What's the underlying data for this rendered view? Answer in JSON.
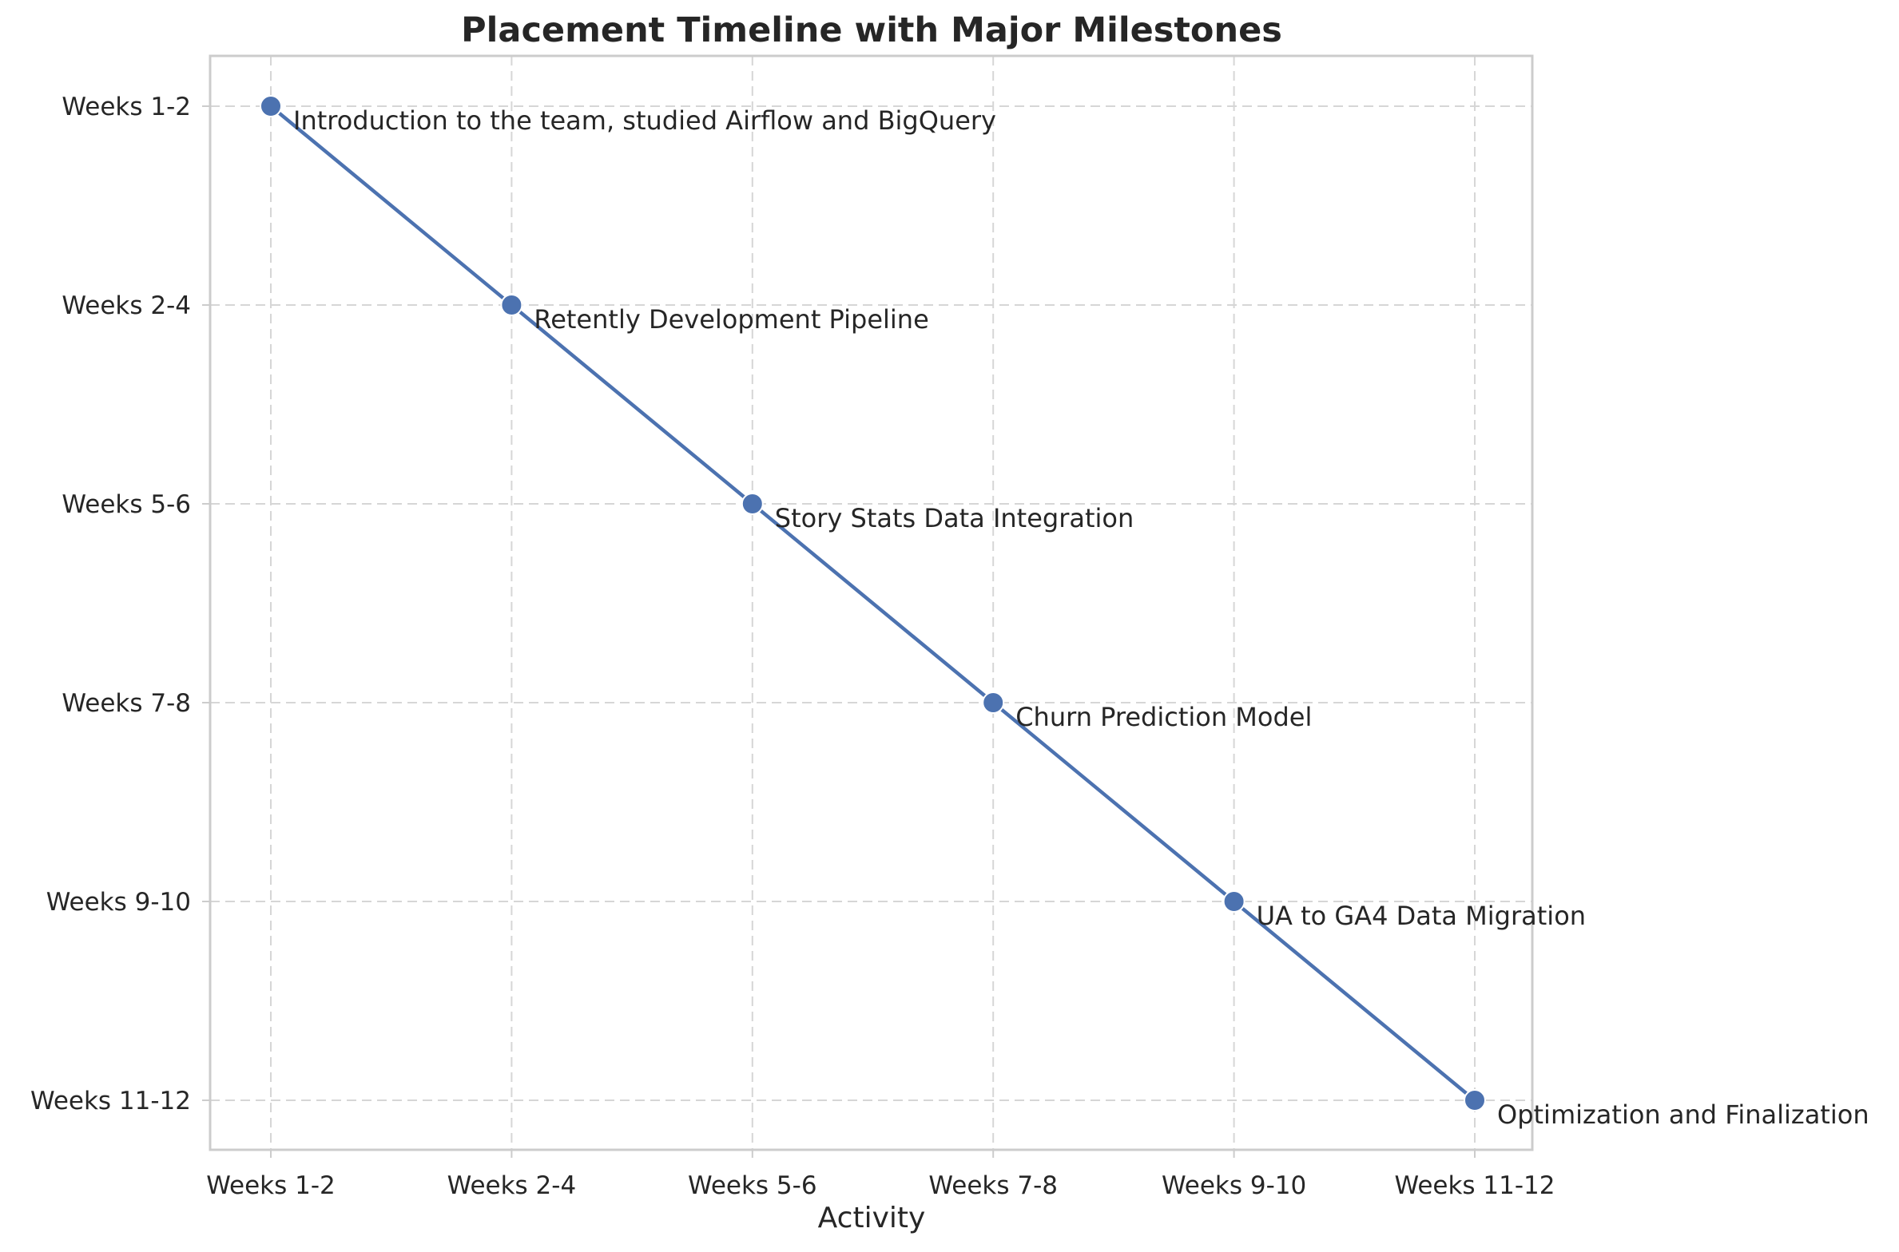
{
  "chart_data": {
    "type": "line",
    "title": "Placement Timeline with Major Milestones",
    "xlabel": "Activity",
    "ylabel": "",
    "categories": [
      "Weeks 1-2",
      "Weeks 2-4",
      "Weeks 5-6",
      "Weeks 7-8",
      "Weeks 9-10",
      "Weeks 11-12"
    ],
    "y_categories": [
      "Weeks 1-2",
      "Weeks 2-4",
      "Weeks 5-6",
      "Weeks 7-8",
      "Weeks 9-10",
      "Weeks 11-12"
    ],
    "y_inverted": true,
    "series": [
      {
        "x": [
          "Weeks 1-2",
          "Weeks 2-4",
          "Weeks 5-6",
          "Weeks 7-8",
          "Weeks 9-10",
          "Weeks 11-12"
        ],
        "y": [
          "Weeks 1-2",
          "Weeks 2-4",
          "Weeks 5-6",
          "Weeks 7-8",
          "Weeks 9-10",
          "Weeks 11-12"
        ],
        "color": "#4c72b0"
      }
    ],
    "annotations": [
      "Introduction to the team, studied Airflow and BigQuery",
      "Retently Development Pipeline",
      "Story Stats Data Integration",
      "Churn Prediction Model",
      "UA to GA4 Data Migration",
      "Optimization and Finalization"
    ],
    "grid": true,
    "legend": "none"
  }
}
